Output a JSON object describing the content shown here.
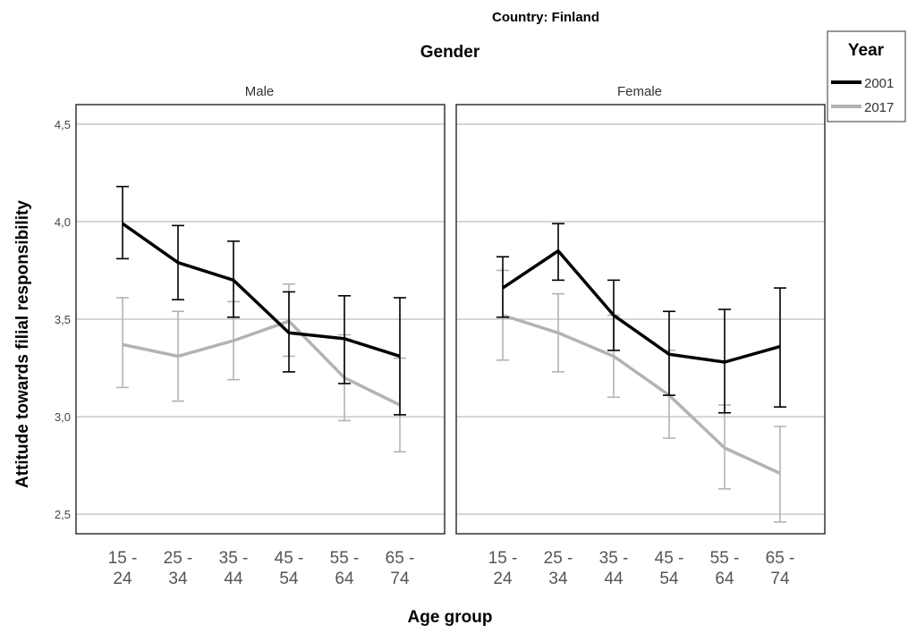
{
  "chart_data": {
    "type": "line",
    "title": "Country: Finland",
    "facet_title": "Gender",
    "xlabel": "Age group",
    "ylabel": "Attitude towards filial responsibility",
    "ylim": [
      2.4,
      4.6
    ],
    "yticks": [
      4.5,
      4.0,
      3.5,
      3.0,
      2.5
    ],
    "ytick_labels": [
      "4,5",
      "4,0",
      "3,5",
      "3,0",
      "2,5"
    ],
    "grid": "horizontal",
    "legend": {
      "title": "Year",
      "position": "top-right"
    },
    "categories": [
      [
        "15 -",
        "24"
      ],
      [
        "25 -",
        "34"
      ],
      [
        "35 -",
        "44"
      ],
      [
        "45 -",
        "54"
      ],
      [
        "55 -",
        "64"
      ],
      [
        "65 -",
        "74"
      ]
    ],
    "series_styles": [
      {
        "name": "2001",
        "color": "#000000"
      },
      {
        "name": "2017",
        "color": "#b3b3b3"
      }
    ],
    "panels": [
      {
        "label": "Male",
        "series": [
          {
            "name": "2001",
            "values": [
              3.99,
              3.79,
              3.7,
              3.43,
              3.4,
              3.31
            ],
            "lower": [
              3.81,
              3.6,
              3.51,
              3.23,
              3.17,
              3.01
            ],
            "upper": [
              4.18,
              3.98,
              3.9,
              3.64,
              3.62,
              3.61
            ]
          },
          {
            "name": "2017",
            "values": [
              3.37,
              3.31,
              3.39,
              3.49,
              3.2,
              3.06
            ],
            "lower": [
              3.15,
              3.08,
              3.19,
              3.31,
              2.98,
              2.82
            ],
            "upper": [
              3.61,
              3.54,
              3.59,
              3.68,
              3.42,
              3.3
            ]
          }
        ]
      },
      {
        "label": "Female",
        "series": [
          {
            "name": "2001",
            "values": [
              3.66,
              3.85,
              3.52,
              3.32,
              3.28,
              3.36
            ],
            "lower": [
              3.51,
              3.7,
              3.34,
              3.11,
              3.02,
              3.05
            ],
            "upper": [
              3.82,
              3.99,
              3.7,
              3.54,
              3.55,
              3.66
            ]
          },
          {
            "name": "2017",
            "values": [
              3.52,
              3.43,
              3.31,
              3.11,
              2.84,
              2.71
            ],
            "lower": [
              3.29,
              3.23,
              3.1,
              2.89,
              2.63,
              2.46
            ],
            "upper": [
              3.75,
              3.63,
              3.52,
              3.34,
              3.06,
              2.95
            ]
          }
        ]
      }
    ]
  }
}
